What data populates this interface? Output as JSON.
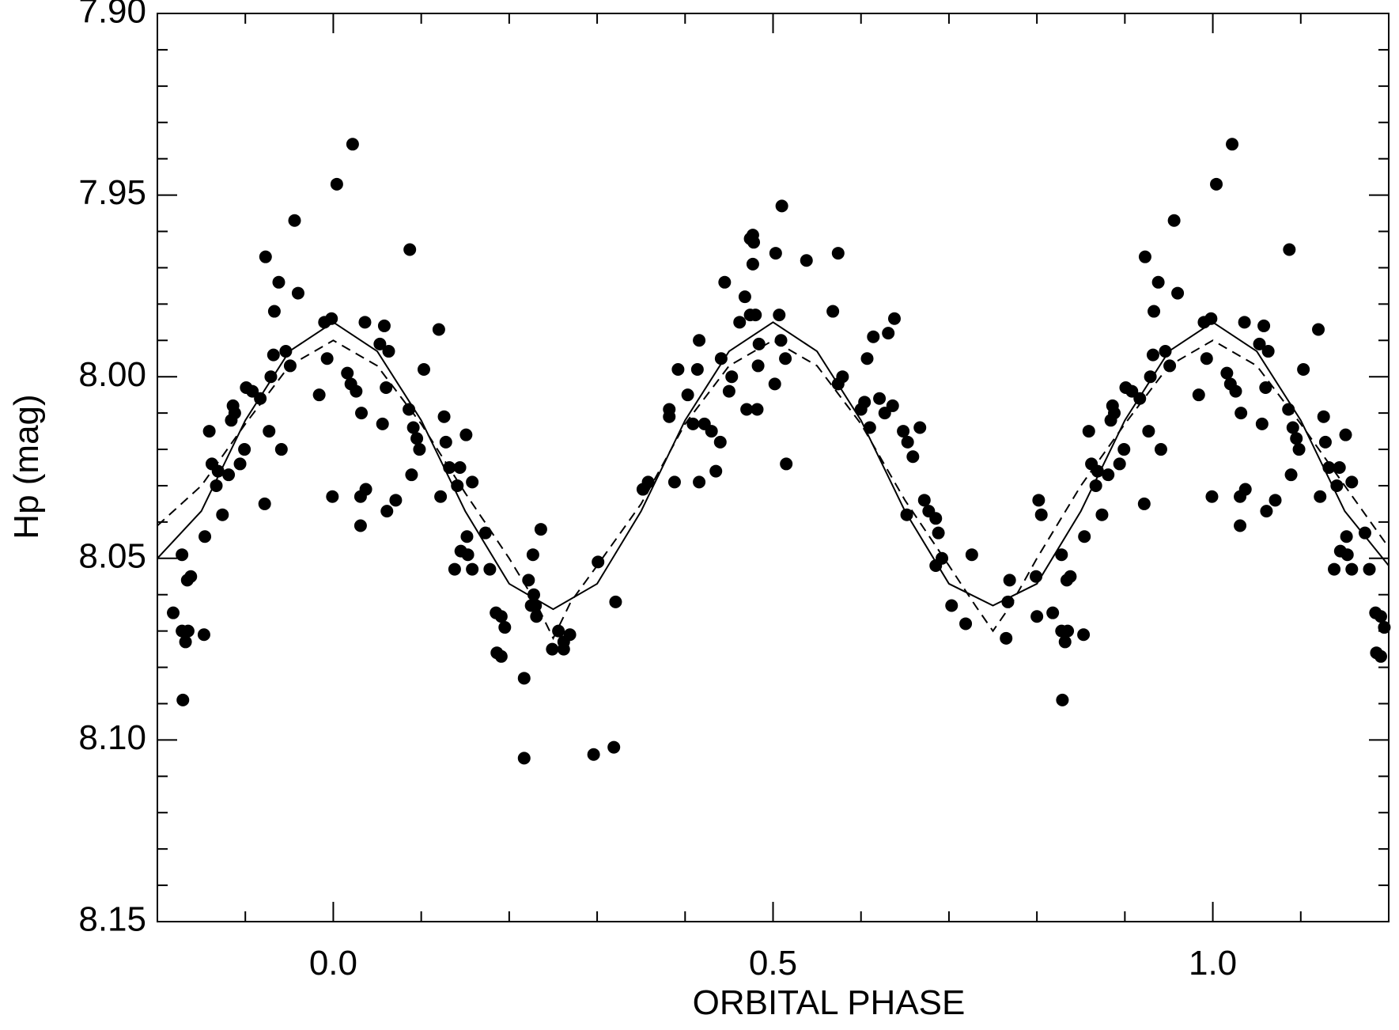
{
  "chart_data": {
    "type": "scatter",
    "xlabel": "ORBITAL PHASE",
    "ylabel": "Hp (mag)",
    "xlim": [
      -0.2,
      1.2
    ],
    "ylim": [
      7.9,
      8.15
    ],
    "y_inverted": true,
    "xticks": [
      {
        "value": 0,
        "label": "0.0"
      },
      {
        "value": 0.5,
        "label": "0.5"
      },
      {
        "value": 1,
        "label": "1.0"
      }
    ],
    "xminorticks": [
      -0.1,
      0.1,
      0.2,
      0.3,
      0.4,
      0.6,
      0.7,
      0.8,
      0.9,
      1.1
    ],
    "yticks": [
      {
        "value": 7.9,
        "label": "7.90"
      },
      {
        "value": 7.95,
        "label": "7.95"
      },
      {
        "value": 8.0,
        "label": "8.00"
      },
      {
        "value": 8.05,
        "label": "8.05"
      },
      {
        "value": 8.1,
        "label": "8.10"
      },
      {
        "value": 8.15,
        "label": "8.15"
      }
    ],
    "yminorticks": [
      7.91,
      7.92,
      7.93,
      7.94,
      7.96,
      7.97,
      7.98,
      7.99,
      8.01,
      8.02,
      8.03,
      8.04,
      8.06,
      8.07,
      8.08,
      8.09,
      8.11,
      8.12,
      8.13,
      8.14
    ],
    "series": [
      {
        "kind": "points",
        "color": "#000000",
        "x": [
          -0.182,
          -0.172,
          -0.165,
          -0.168,
          -0.171,
          -0.172,
          -0.166,
          -0.162,
          -0.147,
          -0.146,
          -0.141,
          -0.138,
          -0.133,
          -0.131,
          -0.126,
          -0.119,
          -0.116,
          -0.114,
          -0.112,
          -0.106,
          -0.101,
          -0.099,
          -0.092,
          -0.083,
          -0.078,
          -0.077,
          -0.073,
          -0.071,
          -0.067,
          -0.068,
          -0.062,
          -0.059,
          -0.054,
          -0.049,
          -0.044,
          -0.04,
          -0.016,
          -0.01,
          -0.007,
          -0.002,
          -0.001,
          0.004,
          0.016,
          0.02,
          0.022,
          0.026,
          0.032,
          0.031,
          0.036,
          0.037,
          0.031,
          0.053,
          0.058,
          0.056,
          0.06,
          0.063,
          0.061,
          0.071,
          0.087,
          0.086,
          0.091,
          0.095,
          0.098,
          0.089,
          0.103,
          0.12,
          0.126,
          0.128,
          0.122,
          0.132,
          0.144,
          0.141,
          0.151,
          0.158,
          0.152,
          0.145,
          0.153,
          0.138,
          0.158,
          0.173,
          0.178,
          0.185,
          0.191,
          0.195,
          0.186,
          0.191,
          0.217,
          0.217,
          0.222,
          0.225,
          0.227,
          0.228,
          0.231,
          0.236,
          0.23,
          0.249,
          0.256,
          0.262,
          0.269,
          0.262,
          0.296,
          0.301,
          0.319,
          0.321,
          0.352,
          0.358,
          0.382,
          0.382,
          0.388,
          0.392,
          0.403,
          0.409,
          0.416,
          0.414,
          0.416,
          0.422,
          0.43,
          0.435,
          0.44,
          0.441,
          0.445,
          0.45,
          0.453,
          0.462,
          0.468,
          0.47,
          0.474,
          0.477,
          0.478,
          0.477,
          0.474,
          0.48,
          0.482,
          0.484,
          0.483,
          0.503,
          0.502,
          0.507,
          0.51,
          0.509,
          0.514,
          0.515,
          0.538,
          0.568,
          0.574,
          0.574,
          0.579,
          0.6,
          0.604,
          0.61,
          0.607,
          0.614,
          0.621,
          0.627,
          0.631,
          0.638,
          0.636,
          0.648,
          0.653,
          0.659,
          0.667,
          0.652,
          0.672,
          0.677,
          0.685,
          0.688,
          0.692,
          0.685,
          0.703,
          0.719,
          0.726,
          0.765,
          0.769,
          0.767,
          0.799,
          0.8,
          0.802,
          0.805,
          0.818,
          0.828,
          0.835,
          0.832,
          0.829,
          0.828,
          0.834,
          0.838,
          0.853,
          0.854,
          0.859,
          0.862,
          0.867,
          0.869,
          0.874,
          0.881,
          0.884,
          0.886,
          0.888,
          0.894,
          0.899,
          0.901,
          0.908,
          0.917,
          0.922,
          0.923,
          0.927,
          0.929,
          0.933,
          0.932,
          0.938,
          0.941,
          0.946,
          0.951,
          0.956,
          0.96,
          0.984,
          0.99,
          0.993,
          0.998,
          0.999,
          1.004,
          1.016,
          1.02,
          1.022,
          1.026,
          1.032,
          1.031,
          1.036,
          1.037,
          1.031,
          1.053,
          1.058,
          1.056,
          1.06,
          1.063,
          1.061,
          1.071,
          1.087,
          1.086,
          1.091,
          1.095,
          1.098,
          1.089,
          1.103,
          1.12,
          1.126,
          1.128,
          1.122,
          1.132,
          1.144,
          1.141,
          1.151,
          1.158,
          1.152,
          1.145,
          1.153,
          1.138,
          1.158,
          1.173,
          1.178,
          1.185,
          1.191,
          1.195,
          1.186,
          1.191
        ],
        "values": [
          8.065,
          8.07,
          8.07,
          8.073,
          8.089,
          8.049,
          8.056,
          8.055,
          8.071,
          8.044,
          8.015,
          8.024,
          8.03,
          8.026,
          8.038,
          8.027,
          8.012,
          8.008,
          8.01,
          8.024,
          8.02,
          8.003,
          8.004,
          8.006,
          8.035,
          7.967,
          8.015,
          8.0,
          7.982,
          7.994,
          7.974,
          8.02,
          7.993,
          7.997,
          7.957,
          7.977,
          8.005,
          7.985,
          7.995,
          7.984,
          8.033,
          7.947,
          7.999,
          8.002,
          7.936,
          8.004,
          8.01,
          8.033,
          7.985,
          8.031,
          8.041,
          7.991,
          7.986,
          8.013,
          8.003,
          7.993,
          8.037,
          8.034,
          7.965,
          8.009,
          8.014,
          8.017,
          8.02,
          8.027,
          7.998,
          7.987,
          8.011,
          8.018,
          8.033,
          8.025,
          8.025,
          8.03,
          8.016,
          8.029,
          8.044,
          8.048,
          8.049,
          8.053,
          8.053,
          8.043,
          8.053,
          8.065,
          8.066,
          8.069,
          8.076,
          8.077,
          8.083,
          8.105,
          8.056,
          8.063,
          8.049,
          8.06,
          8.066,
          8.042,
          8.063,
          8.075,
          8.07,
          8.075,
          8.071,
          8.073,
          8.104,
          8.051,
          8.102,
          8.062,
          8.031,
          8.029,
          8.011,
          8.009,
          8.029,
          7.998,
          8.005,
          8.013,
          7.99,
          7.998,
          8.029,
          8.013,
          8.015,
          8.026,
          8.018,
          7.995,
          7.974,
          8.004,
          8.0,
          7.985,
          7.978,
          8.009,
          7.962,
          7.961,
          7.963,
          7.969,
          7.983,
          7.983,
          8.009,
          7.991,
          7.997,
          7.966,
          8.002,
          7.983,
          7.953,
          7.99,
          7.995,
          8.024,
          7.968,
          7.982,
          7.966,
          8.002,
          8.0,
          8.009,
          8.007,
          8.014,
          7.995,
          7.989,
          8.006,
          8.01,
          7.988,
          7.984,
          8.008,
          8.015,
          8.018,
          8.022,
          8.014,
          8.038,
          8.034,
          8.037,
          8.039,
          8.043,
          8.05,
          8.052,
          8.063,
          8.068,
          8.049,
          8.072,
          8.056,
          8.062,
          8.055,
          8.066,
          8.034,
          8.038,
          8.065,
          8.07,
          8.07,
          8.073,
          8.089,
          8.049,
          8.056,
          8.055,
          8.071,
          8.044,
          8.015,
          8.024,
          8.03,
          8.026,
          8.038,
          8.027,
          8.012,
          8.008,
          8.01,
          8.024,
          8.02,
          8.003,
          8.004,
          8.006,
          8.035,
          7.967,
          8.015,
          8.0,
          7.982,
          7.994,
          7.974,
          8.02,
          7.993,
          7.997,
          7.957,
          7.977,
          8.005,
          7.985,
          7.995,
          7.984,
          8.033,
          7.947,
          7.999,
          8.002,
          7.936,
          8.004,
          8.01,
          8.033,
          7.985,
          8.031,
          8.041,
          7.991,
          7.986,
          8.013,
          8.003,
          7.993,
          8.037,
          8.034,
          7.965,
          8.009,
          8.014,
          8.017,
          8.02,
          8.027,
          7.998,
          7.987,
          8.011,
          8.018,
          8.033,
          8.025,
          8.025,
          8.03,
          8.016,
          8.029,
          8.044,
          8.048,
          8.049,
          8.053,
          8.053,
          8.043,
          8.053,
          8.065,
          8.066,
          8.069,
          8.076,
          8.077
        ]
      },
      {
        "kind": "line",
        "dash": false,
        "color": "#000000",
        "x": [
          -0.2,
          -0.15,
          -0.1,
          -0.05,
          0,
          0.05,
          0.1,
          0.15,
          0.2,
          0.25,
          0.3,
          0.35,
          0.4,
          0.45,
          0.5,
          0.55,
          0.6,
          0.65,
          0.7,
          0.75,
          0.8,
          0.85,
          0.9,
          0.95,
          1.0,
          1.05,
          1.1,
          1.15,
          1.2
        ],
        "values": [
          8.05,
          8.037,
          8.012,
          7.993,
          7.985,
          7.993,
          8.012,
          8.037,
          8.057,
          8.064,
          8.057,
          8.037,
          8.012,
          7.993,
          7.985,
          7.993,
          8.012,
          8.037,
          8.057,
          8.063,
          8.057,
          8.037,
          8.012,
          7.993,
          7.985,
          7.993,
          8.012,
          8.037,
          8.052
        ]
      },
      {
        "kind": "line",
        "dash": true,
        "color": "#000000",
        "x": [
          -0.2,
          -0.15,
          -0.1,
          -0.05,
          0,
          0.05,
          0.1,
          0.15,
          0.2,
          0.23,
          0.25,
          0.27,
          0.3,
          0.35,
          0.4,
          0.45,
          0.5,
          0.55,
          0.6,
          0.65,
          0.7,
          0.73,
          0.75,
          0.77,
          0.8,
          0.85,
          0.9,
          0.95,
          1.0,
          1.05,
          1.1,
          1.15,
          1.2
        ],
        "values": [
          8.041,
          8.03,
          8.013,
          7.997,
          7.99,
          7.997,
          8.013,
          8.032,
          8.05,
          8.062,
          8.072,
          8.062,
          8.052,
          8.035,
          8.013,
          7.997,
          7.99,
          7.997,
          8.013,
          8.034,
          8.052,
          8.063,
          8.07,
          8.063,
          8.05,
          8.03,
          8.013,
          7.997,
          7.99,
          7.997,
          8.013,
          8.03,
          8.047
        ]
      }
    ]
  }
}
